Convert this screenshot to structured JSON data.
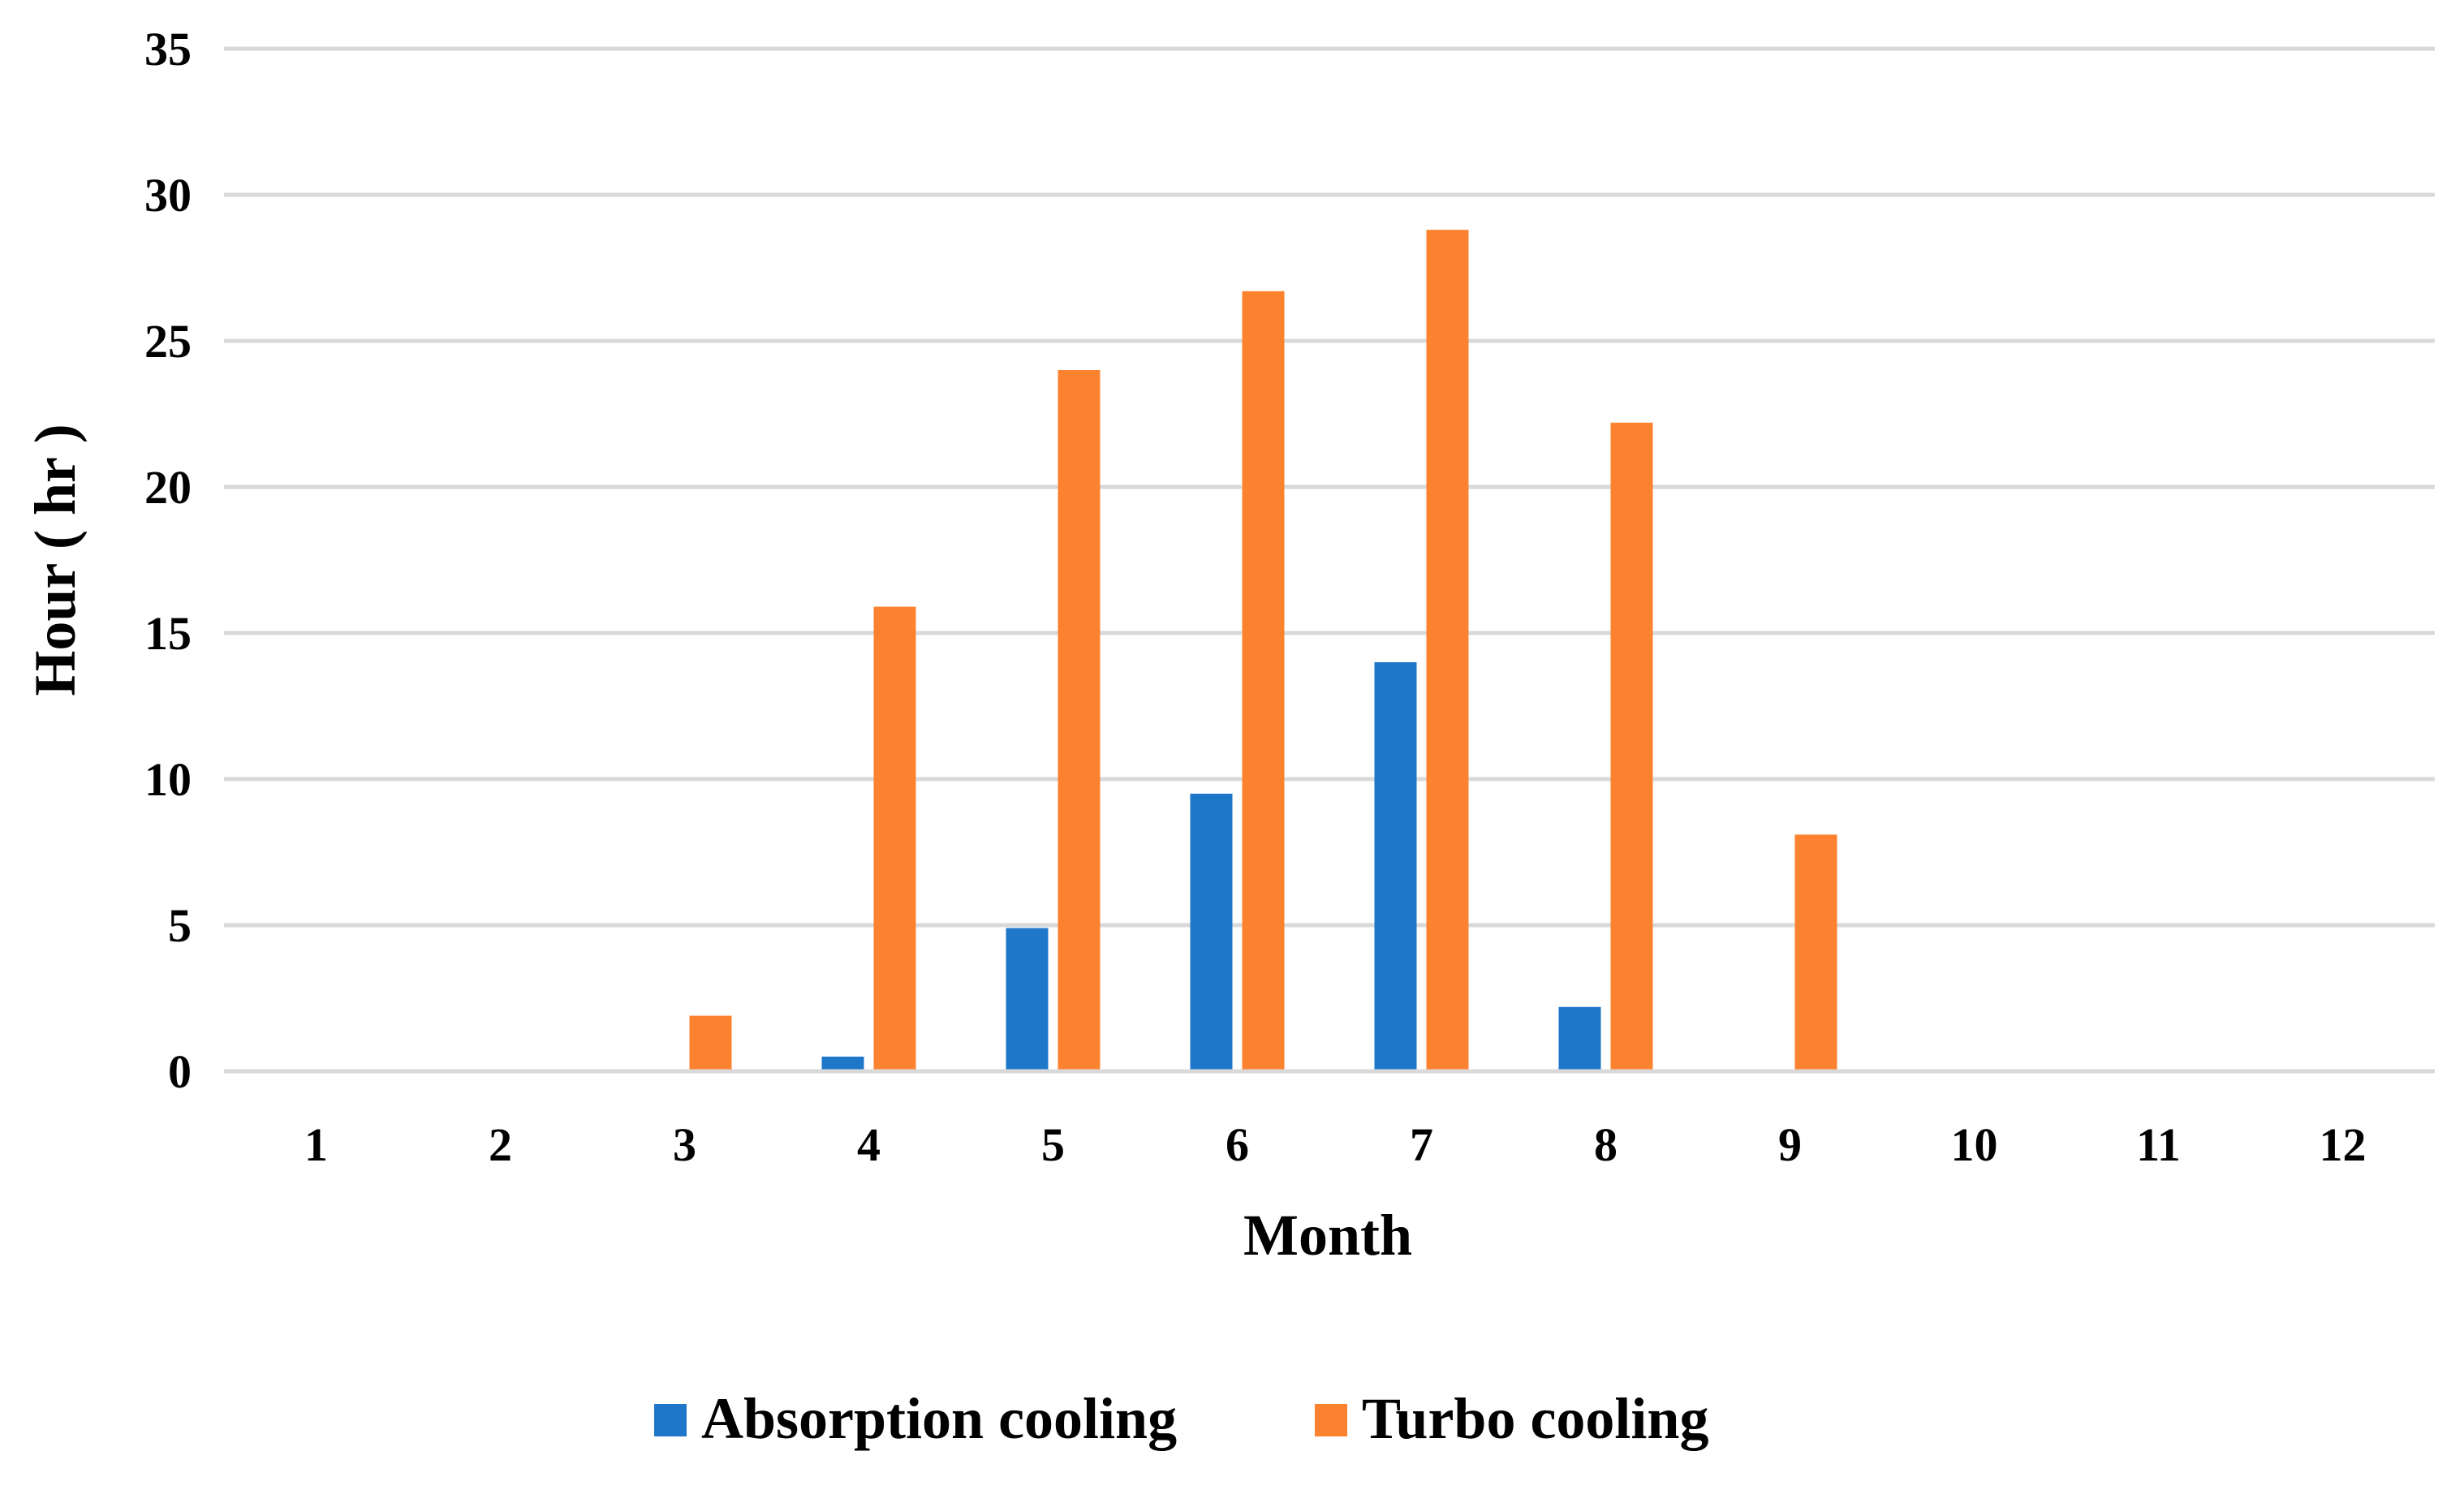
{
  "chart_data": {
    "type": "bar",
    "title": "",
    "xlabel": "Month",
    "ylabel": "Hour ( hr )",
    "ylim": [
      0,
      35
    ],
    "ytick_step": 5,
    "yticks": [
      "0",
      "5",
      "10",
      "15",
      "20",
      "25",
      "30",
      "35"
    ],
    "grid": true,
    "legend_position": "bottom",
    "categories": [
      "1",
      "2",
      "3",
      "4",
      "5",
      "6",
      "7",
      "8",
      "9",
      "10",
      "11",
      "12"
    ],
    "series": [
      {
        "name": "Absorption cooling",
        "color": "#1f77c9",
        "values": [
          0,
          0,
          0,
          0.5,
          4.9,
          9.5,
          14.0,
          2.2,
          0,
          0,
          0,
          0
        ]
      },
      {
        "name": "Turbo cooling",
        "color": "#fd8230",
        "values": [
          0,
          0,
          1.9,
          15.9,
          24.0,
          26.7,
          28.8,
          22.2,
          8.1,
          0,
          0,
          0
        ]
      }
    ]
  }
}
